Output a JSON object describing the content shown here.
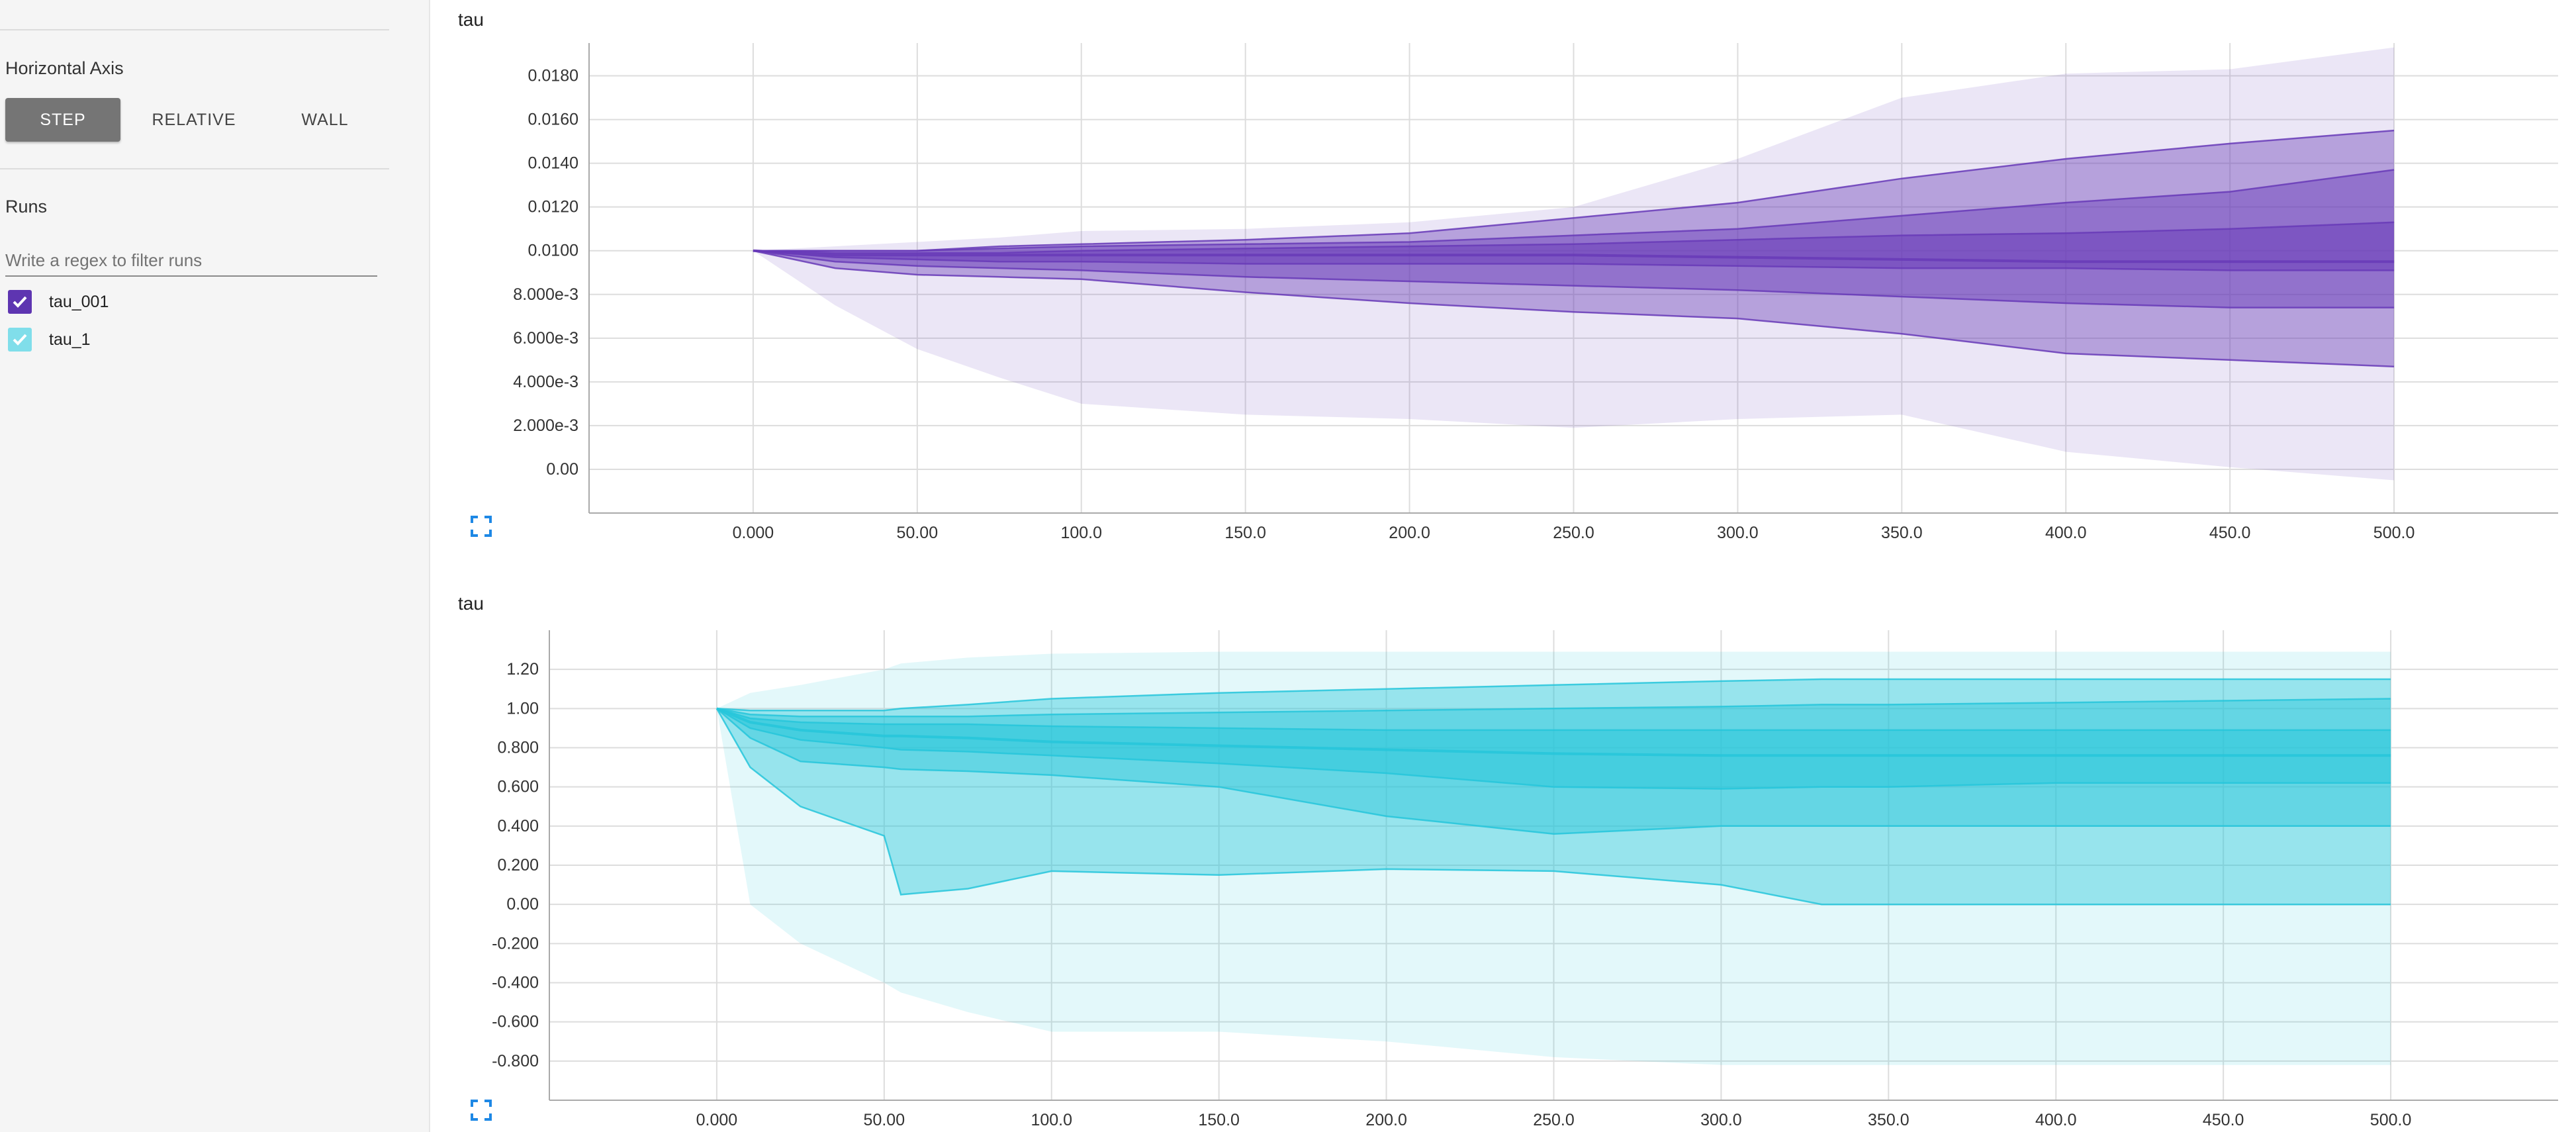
{
  "sidebar": {
    "horizontal_axis_title": "Horizontal Axis",
    "axis_buttons": [
      {
        "label": "STEP",
        "active": true
      },
      {
        "label": "RELATIVE",
        "active": false
      },
      {
        "label": "WALL",
        "active": false
      }
    ],
    "runs_title": "Runs",
    "filter_placeholder": "Write a regex to filter runs",
    "runs": [
      {
        "name": "tau_001",
        "checked": true,
        "color": "#5e35b1"
      },
      {
        "name": "tau_1",
        "checked": true,
        "color": "#80deea"
      }
    ]
  },
  "chart_data": [
    {
      "type": "area",
      "title": "tau",
      "run": "tau_001",
      "color": "#673ab7",
      "xlim": [
        -50,
        550
      ],
      "ylim": [
        -0.002,
        0.0195
      ],
      "x_ticks": [
        0,
        50,
        100,
        150,
        200,
        250,
        300,
        350,
        400,
        450,
        500
      ],
      "x_tick_labels": [
        "0.000",
        "50.00",
        "100.0",
        "150.0",
        "200.0",
        "250.0",
        "300.0",
        "350.0",
        "400.0",
        "450.0",
        "500.0"
      ],
      "y_ticks": [
        0,
        0.002,
        0.004,
        0.006,
        0.008,
        0.01,
        0.012,
        0.014,
        0.016,
        0.018
      ],
      "y_tick_labels": [
        "0.00",
        "2.000e-3",
        "4.000e-3",
        "6.000e-3",
        "8.000e-3",
        "0.0100",
        "0.0120",
        "0.0140",
        "0.0160",
        "0.0180"
      ],
      "x": [
        0,
        25,
        50,
        75,
        100,
        150,
        200,
        250,
        300,
        350,
        400,
        450,
        500
      ],
      "series": [
        {
          "values": [
            0.01,
            0.0075,
            0.0055,
            0.0042,
            0.003,
            0.0025,
            0.0023,
            0.0019,
            0.0023,
            0.0025,
            0.0008,
            0.0001,
            -0.0005
          ]
        },
        {
          "values": [
            0.01,
            0.0092,
            0.0089,
            0.0088,
            0.0087,
            0.0081,
            0.0076,
            0.0072,
            0.0069,
            0.0062,
            0.0053,
            0.005,
            0.0047
          ]
        },
        {
          "values": [
            0.01,
            0.0095,
            0.0093,
            0.0092,
            0.0091,
            0.0088,
            0.0086,
            0.0084,
            0.0082,
            0.0079,
            0.0076,
            0.0074,
            0.0074
          ]
        },
        {
          "values": [
            0.01,
            0.0097,
            0.0096,
            0.0095,
            0.0095,
            0.0094,
            0.0094,
            0.0094,
            0.0093,
            0.0092,
            0.0092,
            0.0091,
            0.0091
          ]
        },
        {
          "values": [
            0.01,
            0.0098,
            0.0098,
            0.0098,
            0.0098,
            0.0098,
            0.0098,
            0.0098,
            0.0097,
            0.0096,
            0.0095,
            0.0095,
            0.0095
          ]
        },
        {
          "values": [
            0.01,
            0.0099,
            0.0099,
            0.0099,
            0.01,
            0.0101,
            0.0102,
            0.0103,
            0.0105,
            0.0107,
            0.0108,
            0.011,
            0.0113
          ]
        },
        {
          "values": [
            0.01,
            0.01,
            0.01,
            0.0101,
            0.0102,
            0.0103,
            0.0104,
            0.0107,
            0.011,
            0.0116,
            0.0122,
            0.0127,
            0.0137
          ]
        },
        {
          "values": [
            0.01,
            0.01,
            0.01,
            0.0102,
            0.0103,
            0.0105,
            0.0108,
            0.0115,
            0.0122,
            0.0133,
            0.0142,
            0.0149,
            0.0155
          ]
        },
        {
          "values": [
            0.01,
            0.0102,
            0.0104,
            0.0106,
            0.0109,
            0.011,
            0.0113,
            0.012,
            0.0142,
            0.017,
            0.0181,
            0.0183,
            0.0193
          ]
        }
      ]
    },
    {
      "type": "area",
      "title": "tau",
      "run": "tau_1",
      "color": "#26c6da",
      "xlim": [
        -50,
        550
      ],
      "ylim": [
        -1.0,
        1.4
      ],
      "x_ticks": [
        0,
        50,
        100,
        150,
        200,
        250,
        300,
        350,
        400,
        450,
        500
      ],
      "x_tick_labels": [
        "0.000",
        "50.00",
        "100.0",
        "150.0",
        "200.0",
        "250.0",
        "300.0",
        "350.0",
        "400.0",
        "450.0",
        "500.0"
      ],
      "y_ticks": [
        -0.8,
        -0.6,
        -0.4,
        -0.2,
        0,
        0.2,
        0.4,
        0.6,
        0.8,
        1.0,
        1.2
      ],
      "y_tick_labels": [
        "-0.800",
        "-0.600",
        "-0.400",
        "-0.200",
        "0.00",
        "0.200",
        "0.400",
        "0.600",
        "0.800",
        "1.00",
        "1.20"
      ],
      "x": [
        0,
        10,
        25,
        50,
        55,
        75,
        100,
        150,
        200,
        250,
        300,
        330,
        350,
        400,
        450,
        500
      ],
      "series": [
        {
          "values": [
            1.0,
            0.0,
            -0.2,
            -0.4,
            -0.45,
            -0.55,
            -0.65,
            -0.65,
            -0.7,
            -0.78,
            -0.82,
            -0.82,
            -0.82,
            -0.82,
            -0.82,
            -0.82
          ]
        },
        {
          "values": [
            1.0,
            0.7,
            0.5,
            0.35,
            0.05,
            0.08,
            0.17,
            0.15,
            0.18,
            0.17,
            0.1,
            0.0,
            0.0,
            0.0,
            0.0,
            0.0
          ]
        },
        {
          "values": [
            1.0,
            0.85,
            0.73,
            0.7,
            0.69,
            0.68,
            0.66,
            0.6,
            0.45,
            0.36,
            0.4,
            0.4,
            0.4,
            0.4,
            0.4,
            0.4
          ]
        },
        {
          "values": [
            1.0,
            0.9,
            0.84,
            0.8,
            0.79,
            0.78,
            0.76,
            0.72,
            0.67,
            0.6,
            0.59,
            0.6,
            0.6,
            0.62,
            0.62,
            0.62
          ]
        },
        {
          "values": [
            1.0,
            0.93,
            0.89,
            0.86,
            0.86,
            0.85,
            0.83,
            0.81,
            0.79,
            0.77,
            0.76,
            0.76,
            0.76,
            0.76,
            0.76,
            0.76
          ]
        },
        {
          "values": [
            1.0,
            0.95,
            0.93,
            0.92,
            0.92,
            0.92,
            0.91,
            0.9,
            0.89,
            0.89,
            0.89,
            0.89,
            0.89,
            0.89,
            0.89,
            0.89
          ]
        },
        {
          "values": [
            1.0,
            0.97,
            0.96,
            0.96,
            0.96,
            0.96,
            0.97,
            0.98,
            0.99,
            1.0,
            1.01,
            1.02,
            1.02,
            1.03,
            1.04,
            1.05
          ]
        },
        {
          "values": [
            1.0,
            0.99,
            0.99,
            0.99,
            1.0,
            1.02,
            1.05,
            1.08,
            1.1,
            1.12,
            1.14,
            1.15,
            1.15,
            1.15,
            1.15,
            1.15
          ]
        },
        {
          "values": [
            1.0,
            1.08,
            1.12,
            1.2,
            1.23,
            1.26,
            1.28,
            1.29,
            1.29,
            1.29,
            1.29,
            1.29,
            1.29,
            1.29,
            1.29,
            1.29
          ]
        }
      ]
    }
  ]
}
